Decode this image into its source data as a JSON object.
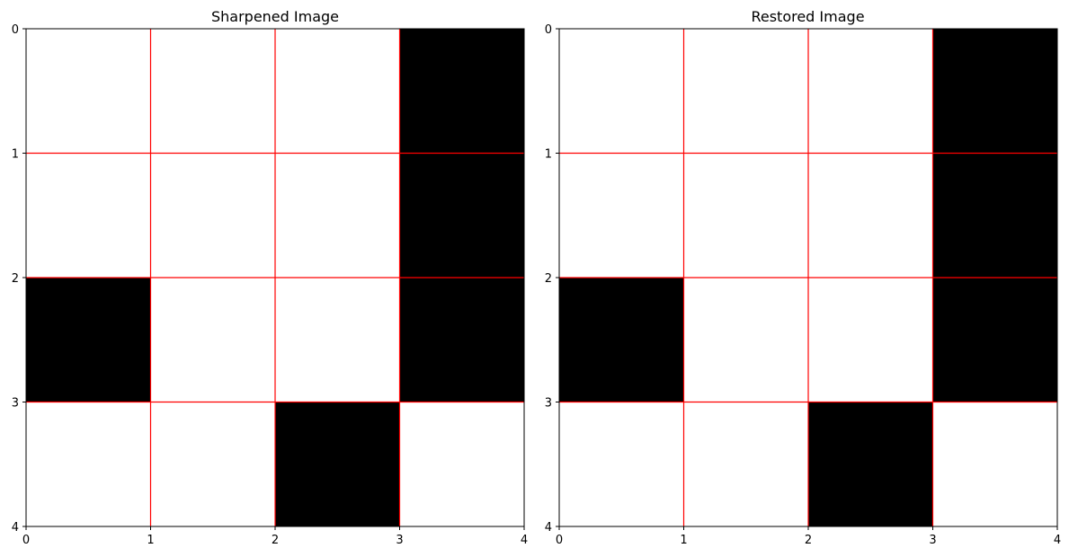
{
  "figure": {
    "background": "#ffffff",
    "grid_color": "#ff0000",
    "cell_on_color": "#000000",
    "cell_off_color": "#ffffff"
  },
  "chart_data": [
    {
      "type": "heatmap",
      "title": "Sharpened Image",
      "xlim": [
        0,
        4
      ],
      "ylim": [
        4,
        0
      ],
      "x_ticks": [
        "0",
        "1",
        "2",
        "3",
        "4"
      ],
      "y_ticks": [
        "0",
        "1",
        "2",
        "3",
        "4"
      ],
      "grid": true,
      "values": [
        [
          0,
          0,
          0,
          1
        ],
        [
          0,
          0,
          0,
          1
        ],
        [
          1,
          0,
          0,
          1
        ],
        [
          0,
          0,
          1,
          0
        ]
      ]
    },
    {
      "type": "heatmap",
      "title": "Restored Image",
      "xlim": [
        0,
        4
      ],
      "ylim": [
        4,
        0
      ],
      "x_ticks": [
        "0",
        "1",
        "2",
        "3",
        "4"
      ],
      "y_ticks": [
        "0",
        "1",
        "2",
        "3",
        "4"
      ],
      "grid": true,
      "values": [
        [
          0,
          0,
          0,
          1
        ],
        [
          0,
          0,
          0,
          1
        ],
        [
          1,
          0,
          0,
          1
        ],
        [
          0,
          0,
          1,
          0
        ]
      ]
    }
  ]
}
